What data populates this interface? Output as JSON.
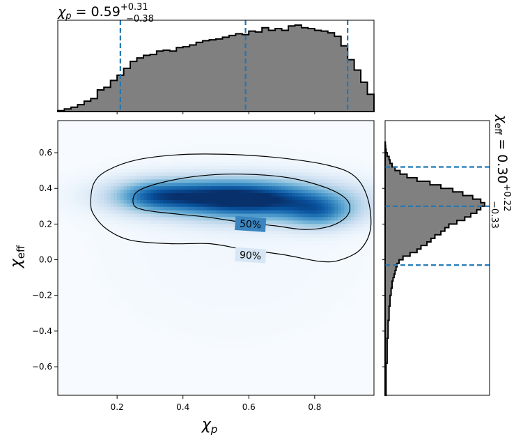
{
  "chart_data": {
    "type": "corner",
    "colors": {
      "hist_fill": "#808080",
      "hist_edge": "#000000",
      "quantile_line": "#1f77b4",
      "density_cmap": "Blues"
    },
    "x_param": {
      "label": "χ",
      "label_sub": "p",
      "median": 0.59,
      "upper": 0.31,
      "lower": 0.38,
      "summary_main": "χ",
      "summary_sub": "p",
      "summary_eq": " = 0.59",
      "summary_sup": "+0.31",
      "summary_low": "−0.38",
      "lim": [
        0.02,
        0.98
      ],
      "ticks": [
        0.2,
        0.4,
        0.6,
        0.8
      ],
      "tick_labels": [
        "0.2",
        "0.4",
        "0.6",
        "0.8"
      ],
      "quantile_lines": [
        0.21,
        0.59,
        0.9
      ]
    },
    "y_param": {
      "label": "χ",
      "label_sub": "eff",
      "median": 0.3,
      "upper": 0.22,
      "lower": 0.33,
      "summary_main": "χ",
      "summary_sub": "eff",
      "summary_eq": " = 0.30",
      "summary_sup": "+0.22",
      "summary_low": "−0.33",
      "lim": [
        -0.76,
        0.78
      ],
      "ticks": [
        -0.6,
        -0.4,
        -0.2,
        0.0,
        0.2,
        0.4,
        0.6
      ],
      "tick_labels": [
        "−0.6",
        "−0.4",
        "−0.2",
        "0.0",
        "0.2",
        "0.4",
        "0.6"
      ],
      "quantile_lines": [
        -0.03,
        0.3,
        0.52
      ]
    },
    "contours": [
      {
        "level": "50%",
        "label": "50%"
      },
      {
        "level": "90%",
        "label": "90%"
      }
    ],
    "marginal_x": {
      "bin_edges_start": 0.02,
      "bin_width": 0.02,
      "counts": [
        0.01,
        0.03,
        0.05,
        0.08,
        0.12,
        0.15,
        0.25,
        0.28,
        0.36,
        0.42,
        0.5,
        0.58,
        0.62,
        0.65,
        0.66,
        0.7,
        0.71,
        0.7,
        0.74,
        0.75,
        0.77,
        0.8,
        0.82,
        0.83,
        0.84,
        0.86,
        0.88,
        0.9,
        0.89,
        0.93,
        0.92,
        0.97,
        0.94,
        0.96,
        0.94,
        0.99,
        1.0,
        0.97,
        0.96,
        0.94,
        0.93,
        0.91,
        0.87,
        0.76,
        0.6,
        0.48,
        0.34,
        0.2
      ]
    },
    "marginal_y": {
      "bin_edges_start": -0.76,
      "bin_width": 0.02,
      "counts": [
        0.01,
        0.01,
        0.01,
        0.01,
        0.01,
        0.01,
        0.01,
        0.01,
        0.01,
        0.02,
        0.02,
        0.02,
        0.02,
        0.02,
        0.02,
        0.02,
        0.03,
        0.03,
        0.03,
        0.03,
        0.03,
        0.04,
        0.04,
        0.04,
        0.04,
        0.05,
        0.05,
        0.05,
        0.06,
        0.06,
        0.07,
        0.07,
        0.08,
        0.09,
        0.1,
        0.11,
        0.12,
        0.14,
        0.18,
        0.25,
        0.32,
        0.36,
        0.42,
        0.46,
        0.5,
        0.56,
        0.6,
        0.64,
        0.72,
        0.8,
        0.86,
        0.92,
        0.96,
        1.0,
        0.96,
        0.88,
        0.78,
        0.68,
        0.56,
        0.45,
        0.32,
        0.22,
        0.15,
        0.1,
        0.07,
        0.05,
        0.04,
        0.02,
        0.01,
        0.005,
        0.002
      ]
    },
    "density_blobs": [
      {
        "cx": 0.66,
        "cy": 0.33,
        "sx": 0.18,
        "sy": 0.08,
        "w": 1.0
      },
      {
        "cx": 0.45,
        "cy": 0.36,
        "sx": 0.17,
        "sy": 0.07,
        "w": 0.85
      },
      {
        "cx": 0.82,
        "cy": 0.26,
        "sx": 0.07,
        "sy": 0.06,
        "w": 0.55
      },
      {
        "cx": 0.3,
        "cy": 0.36,
        "sx": 0.08,
        "sy": 0.06,
        "w": 0.45
      },
      {
        "cx": 0.55,
        "cy": 0.1,
        "sx": 0.3,
        "sy": 0.4,
        "w": 0.04
      }
    ],
    "contour_90": [
      [
        0.12,
        0.32
      ],
      [
        0.13,
        0.43
      ],
      [
        0.17,
        0.5
      ],
      [
        0.26,
        0.56
      ],
      [
        0.4,
        0.59
      ],
      [
        0.55,
        0.59
      ],
      [
        0.7,
        0.57
      ],
      [
        0.84,
        0.53
      ],
      [
        0.92,
        0.47
      ],
      [
        0.96,
        0.35
      ],
      [
        0.97,
        0.18
      ],
      [
        0.94,
        0.06
      ],
      [
        0.88,
        0.0
      ],
      [
        0.82,
        -0.01
      ],
      [
        0.7,
        0.03
      ],
      [
        0.58,
        0.06
      ],
      [
        0.48,
        0.09
      ],
      [
        0.36,
        0.09
      ],
      [
        0.24,
        0.11
      ],
      [
        0.17,
        0.17
      ],
      [
        0.13,
        0.25
      ]
    ],
    "contour_50": [
      [
        0.25,
        0.31
      ],
      [
        0.26,
        0.38
      ],
      [
        0.33,
        0.43
      ],
      [
        0.45,
        0.47
      ],
      [
        0.58,
        0.48
      ],
      [
        0.72,
        0.46
      ],
      [
        0.84,
        0.4
      ],
      [
        0.9,
        0.33
      ],
      [
        0.9,
        0.25
      ],
      [
        0.85,
        0.19
      ],
      [
        0.77,
        0.17
      ],
      [
        0.68,
        0.19
      ],
      [
        0.58,
        0.21
      ],
      [
        0.47,
        0.24
      ],
      [
        0.36,
        0.26
      ],
      [
        0.28,
        0.28
      ]
    ],
    "contour_label_pos": {
      "p50": [
        0.605,
        0.2
      ],
      "p90": [
        0.605,
        0.025
      ]
    }
  }
}
